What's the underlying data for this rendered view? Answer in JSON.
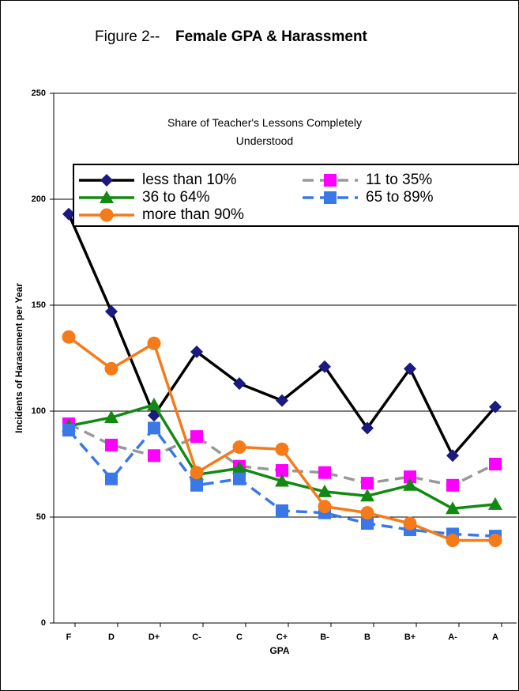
{
  "chart_data": {
    "type": "line",
    "figure_label": "Figure 2--",
    "title": "Female GPA & Harassment",
    "subtitle": "Share of Teacher's Lessons Completely Understood",
    "x_label": "GPA",
    "y_label": "Incidents of Harassment per Year",
    "categories": [
      "F",
      "D",
      "D+",
      "C-",
      "C",
      "C+",
      "B-",
      "B",
      "B+",
      "A-",
      "A"
    ],
    "ylim": [
      0,
      250
    ],
    "yticks": [
      0,
      50,
      100,
      150,
      200,
      250
    ],
    "grid": true,
    "series": [
      {
        "name": "less than 10%",
        "color": "#000000",
        "marker": "diamond",
        "marker_color": "#1a1a80",
        "dash": false,
        "values": [
          193,
          147,
          98,
          128,
          113,
          105,
          121,
          92,
          120,
          79,
          102
        ]
      },
      {
        "name": "11 to 35%",
        "color": "#999999",
        "marker": "square",
        "marker_color": "#ff00ff",
        "dash": true,
        "line_width": 3,
        "values": [
          94,
          84,
          79,
          88,
          74,
          72,
          71,
          66,
          69,
          65,
          75
        ]
      },
      {
        "name": "36 to 64%",
        "color": "#128a12",
        "marker": "triangle",
        "marker_color": "#128a12",
        "dash": false,
        "values": [
          93,
          97,
          103,
          70,
          73,
          67,
          62,
          60,
          65,
          54,
          56
        ]
      },
      {
        "name": "65 to 89%",
        "color": "#3a78e8",
        "marker": "square",
        "marker_color": "#3a78e8",
        "dash": true,
        "values": [
          91,
          68,
          92,
          65,
          68,
          53,
          52,
          47,
          44,
          42,
          41
        ]
      },
      {
        "name": "more than 90%",
        "color": "#f57a1a",
        "marker": "circle",
        "marker_color": "#f57a1a",
        "dash": false,
        "values": [
          135,
          120,
          132,
          71,
          83,
          82,
          55,
          52,
          47,
          39,
          39
        ]
      }
    ]
  }
}
